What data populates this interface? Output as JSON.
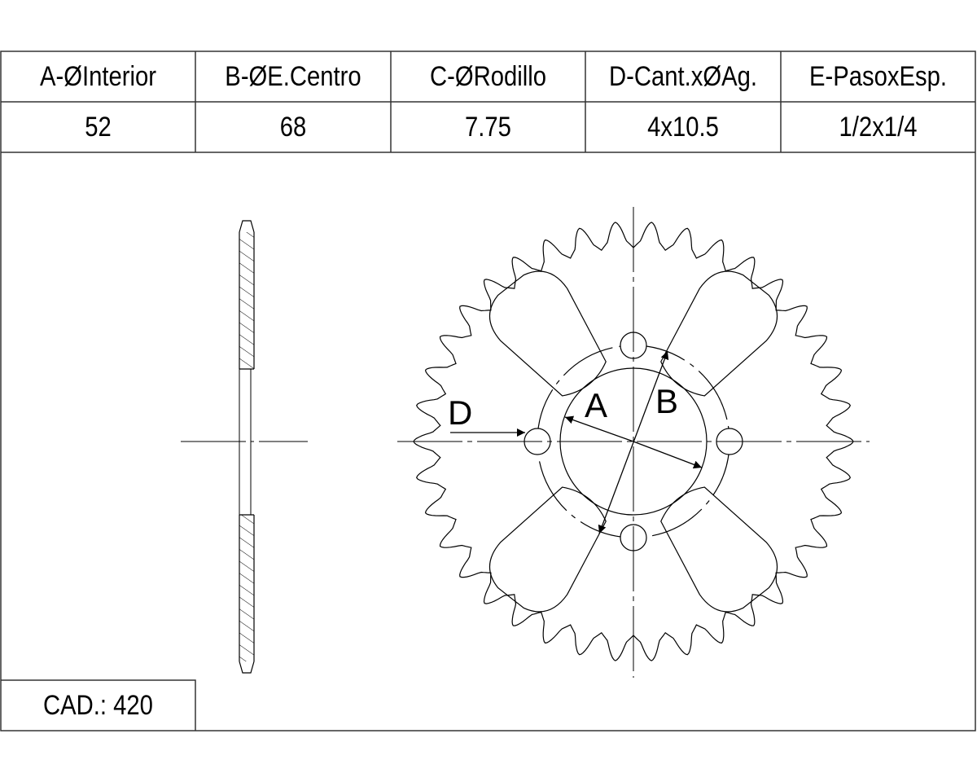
{
  "spec_table": {
    "headers": [
      "A-ØInterior",
      "B-ØE.Centro",
      "C-ØRodillo",
      "D-Cant.xØAg.",
      "E-PasoxEsp."
    ],
    "values": [
      "52",
      "68",
      "7.75",
      "4x10.5",
      "1/2x1/4"
    ]
  },
  "drawing": {
    "callouts": {
      "a": "A",
      "b": "B",
      "d": "D"
    },
    "teeth_count": 38,
    "bolt_holes": 4,
    "lightening_holes": 4
  },
  "footer": {
    "cad_label": "CAD.: 420"
  },
  "colors": {
    "line": "#000000",
    "background": "#ffffff",
    "frame": "#333333"
  }
}
